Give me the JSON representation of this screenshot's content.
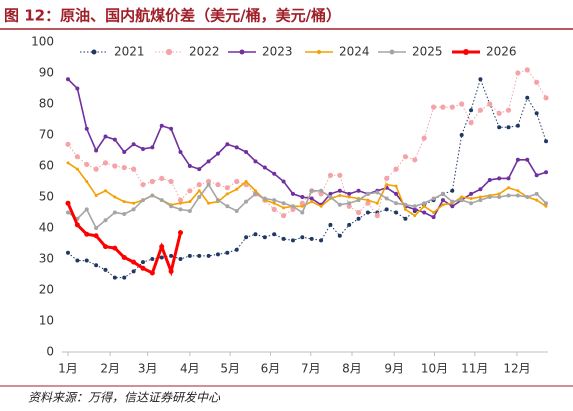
{
  "chart_data": {
    "type": "line",
    "title": "图 12：原油、国内航煤价差（美元/桶，美元/桶）",
    "source": "资料来源：万得，信达证券研发中心",
    "x": [
      1,
      2,
      3,
      4,
      5,
      6,
      7,
      8,
      9,
      10,
      11,
      12,
      13,
      14,
      15,
      16,
      17,
      18,
      19,
      20,
      21,
      22,
      23,
      24,
      25,
      26,
      27,
      28,
      29,
      30,
      31,
      32,
      33,
      34,
      35,
      36,
      37,
      38,
      39,
      40,
      41,
      42,
      43,
      44,
      45,
      46,
      47,
      48,
      49,
      50,
      51,
      52
    ],
    "xlim": [
      0.36,
      52.21
    ],
    "xticks": [
      {
        "value": 1,
        "label": "1月"
      },
      {
        "value": 5.5,
        "label": "2月"
      },
      {
        "value": 9.5,
        "label": "3月"
      },
      {
        "value": 14,
        "label": "4月"
      },
      {
        "value": 18.3,
        "label": "5月"
      },
      {
        "value": 22.6,
        "label": "6月"
      },
      {
        "value": 26.9,
        "label": "7月"
      },
      {
        "value": 31.3,
        "label": "8月"
      },
      {
        "value": 35.8,
        "label": "9月"
      },
      {
        "value": 40.1,
        "label": "10月"
      },
      {
        "value": 44.4,
        "label": "11月"
      },
      {
        "value": 48.9,
        "label": "12月"
      }
    ],
    "ylim": [
      0,
      100
    ],
    "yticks": [
      0,
      10,
      20,
      30,
      40,
      50,
      60,
      70,
      80,
      90,
      100
    ],
    "legend": "top",
    "series": [
      {
        "name": "2021",
        "color": "#1f3864",
        "values": [
          32,
          29.5,
          29.5,
          28,
          26.5,
          24,
          24,
          26,
          29,
          30,
          30.5,
          31,
          30,
          31,
          31,
          31,
          31.5,
          32,
          33,
          37,
          38,
          37,
          38,
          36.5,
          36,
          37,
          36.5,
          36,
          41,
          37.5,
          41,
          43,
          45,
          45,
          46,
          45,
          43,
          45.5,
          47.5,
          49,
          51,
          52,
          70,
          78,
          88,
          80,
          72.5,
          72.5,
          73,
          82,
          77,
          68
        ]
      },
      {
        "name": "2022",
        "color": "#f4a3a8",
        "values": [
          67,
          63,
          60.5,
          59,
          61,
          60,
          59.5,
          59,
          54,
          55,
          56,
          55,
          49,
          52,
          54,
          55,
          54,
          53,
          55,
          54,
          51,
          49,
          46,
          44,
          46,
          48,
          52,
          51,
          57,
          57,
          47,
          45,
          48,
          44,
          56,
          59,
          63,
          62,
          69,
          79,
          79,
          79,
          80,
          74,
          78,
          80,
          77,
          78,
          90,
          91,
          87,
          82
        ]
      },
      {
        "name": "2023",
        "color": "#7030a0",
        "values": [
          88,
          85,
          72,
          65,
          69.5,
          68.5,
          64.5,
          67,
          65.5,
          66,
          73,
          72,
          64.5,
          60,
          59,
          61.5,
          64,
          67,
          66,
          64.5,
          61.5,
          59.5,
          57.5,
          55,
          51,
          50,
          49.5,
          47.5,
          51,
          52,
          51,
          52,
          51,
          52,
          53,
          51,
          47,
          46,
          45,
          43.5,
          49,
          47,
          49,
          51,
          52.5,
          55.5,
          56,
          56,
          62,
          62,
          57,
          58
        ]
      },
      {
        "name": "2024",
        "color": "#f5a000",
        "values": [
          61,
          59,
          55,
          50.5,
          52,
          50,
          48.5,
          48,
          49,
          50.5,
          49,
          47.5,
          48,
          48.5,
          52,
          48,
          48.5,
          51,
          52.5,
          55,
          52,
          49,
          48,
          46.5,
          47,
          47,
          48.5,
          47,
          49.5,
          50.5,
          50,
          49.5,
          49,
          48,
          54,
          53.5,
          46,
          44,
          47,
          45,
          47.5,
          48,
          50,
          49.5,
          50,
          50.5,
          51,
          53,
          52,
          50,
          49,
          47
        ]
      },
      {
        "name": "2025",
        "color": "#a5a5a5",
        "values": [
          45,
          43,
          46,
          40,
          42.5,
          45,
          44.5,
          46,
          49,
          50.5,
          49,
          47,
          46,
          45.5,
          50,
          54,
          49,
          47,
          45.5,
          48.5,
          51,
          49.5,
          49,
          48,
          47,
          45,
          52,
          52,
          50,
          47.5,
          48,
          49,
          51,
          51.5,
          49.5,
          48,
          47.5,
          47,
          48,
          49.5,
          51,
          48.5,
          49,
          48,
          49,
          50,
          50,
          50.5,
          50.5,
          50,
          51,
          48
        ]
      },
      {
        "name": "2026",
        "color": "#ff0000",
        "values": [
          48,
          41,
          38,
          37.5,
          34,
          33.5,
          30.5,
          29,
          27,
          25.5,
          34,
          26,
          38.5,
          null,
          null,
          null,
          null,
          null,
          null,
          null,
          null,
          null,
          null,
          null,
          null,
          null,
          null,
          null,
          null,
          null,
          null,
          null,
          null,
          null,
          null,
          null,
          null,
          null,
          null,
          null,
          null,
          null,
          null,
          null,
          null,
          null,
          null,
          null,
          null,
          null,
          null,
          null
        ]
      }
    ]
  }
}
